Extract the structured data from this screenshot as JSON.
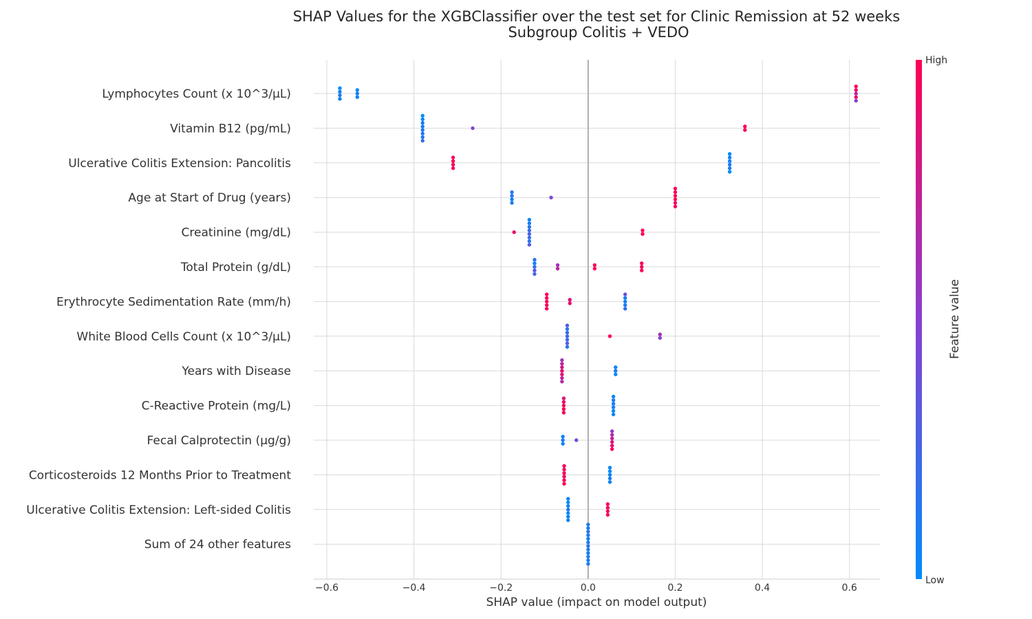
{
  "chart_data": {
    "type": "scatter",
    "title": "SHAP Values for the XGBClassifier over the test set for Clinic Remission at 52 weeks",
    "subtitle": "Subgroup Colitis + VEDO",
    "xlabel": "SHAP value (impact on model output)",
    "xlim": [
      -0.63,
      0.67
    ],
    "xticks": [
      -0.6,
      -0.4,
      -0.2,
      0.0,
      0.2,
      0.4,
      0.6
    ],
    "xtick_labels": [
      "−0.6",
      "−0.4",
      "−0.2",
      "0.0",
      "0.2",
      "0.4",
      "0.6"
    ],
    "grid": true,
    "colorbar": {
      "label": "Feature value",
      "high_label": "High",
      "low_label": "Low",
      "low_color": "#008bfb",
      "mid_color": "#8a3fd0",
      "high_color": "#ff0052"
    },
    "features": [
      {
        "name": "Lymphocytes Count (x 10^3/µL)",
        "points": [
          [
            -0.57,
            0.0
          ],
          [
            -0.57,
            0.05
          ],
          [
            -0.57,
            0.1
          ],
          [
            -0.57,
            0.05
          ],
          [
            -0.53,
            0.0
          ],
          [
            -0.53,
            0.05
          ],
          [
            -0.53,
            0.05
          ],
          [
            0.615,
            1.0
          ],
          [
            0.615,
            0.95
          ],
          [
            0.615,
            0.7
          ],
          [
            0.615,
            0.9
          ],
          [
            0.615,
            0.5
          ]
        ]
      },
      {
        "name": "Vitamin B12 (pg/mL)",
        "points": [
          [
            -0.38,
            0.0
          ],
          [
            -0.38,
            0.05
          ],
          [
            -0.38,
            0.08
          ],
          [
            -0.38,
            0.1
          ],
          [
            -0.38,
            0.1
          ],
          [
            -0.38,
            0.12
          ],
          [
            -0.38,
            0.15
          ],
          [
            -0.38,
            0.2
          ],
          [
            -0.265,
            0.45
          ],
          [
            0.36,
            1.0
          ],
          [
            0.36,
            0.95
          ]
        ]
      },
      {
        "name": "Ulcerative Colitis Extension: Pancolitis",
        "points": [
          [
            -0.31,
            1.0
          ],
          [
            -0.31,
            1.0
          ],
          [
            -0.31,
            0.95
          ],
          [
            -0.31,
            0.95
          ],
          [
            0.325,
            0.0
          ],
          [
            0.325,
            0.05
          ],
          [
            0.325,
            0.05
          ],
          [
            0.325,
            0.1
          ],
          [
            0.325,
            0.1
          ],
          [
            0.325,
            0.0
          ]
        ]
      },
      {
        "name": "Age at Start of Drug (years)",
        "points": [
          [
            -0.175,
            0.1
          ],
          [
            -0.175,
            0.15
          ],
          [
            -0.175,
            0.05
          ],
          [
            -0.175,
            0.1
          ],
          [
            -0.085,
            0.45
          ],
          [
            0.2,
            1.0
          ],
          [
            0.2,
            0.95
          ],
          [
            0.2,
            0.95
          ],
          [
            0.2,
            1.0
          ],
          [
            0.2,
            0.9
          ],
          [
            0.2,
            0.95
          ]
        ]
      },
      {
        "name": "Creatinine (mg/dL)",
        "points": [
          [
            -0.17,
            0.9
          ],
          [
            -0.135,
            0.05
          ],
          [
            -0.135,
            0.1
          ],
          [
            -0.135,
            0.15
          ],
          [
            -0.135,
            0.2
          ],
          [
            -0.135,
            0.25
          ],
          [
            -0.135,
            0.2
          ],
          [
            -0.135,
            0.15
          ],
          [
            -0.135,
            0.3
          ],
          [
            0.125,
            1.0
          ],
          [
            0.125,
            0.95
          ]
        ]
      },
      {
        "name": "Total Protein (g/dL)",
        "points": [
          [
            -0.123,
            0.15
          ],
          [
            -0.123,
            0.05
          ],
          [
            -0.123,
            0.2
          ],
          [
            -0.123,
            0.3
          ],
          [
            -0.123,
            0.25
          ],
          [
            -0.07,
            0.6
          ],
          [
            -0.07,
            0.7
          ],
          [
            0.015,
            0.95
          ],
          [
            0.015,
            1.0
          ],
          [
            0.123,
            1.0
          ],
          [
            0.123,
            0.95
          ],
          [
            0.123,
            1.0
          ]
        ]
      },
      {
        "name": "Erythrocyte Sedimentation Rate (mm/h)",
        "points": [
          [
            -0.095,
            1.0
          ],
          [
            -0.095,
            0.95
          ],
          [
            -0.095,
            1.0
          ],
          [
            -0.095,
            0.95
          ],
          [
            -0.095,
            1.0
          ],
          [
            -0.042,
            0.85
          ],
          [
            -0.042,
            0.9
          ],
          [
            0.085,
            0.35
          ],
          [
            0.085,
            0.1
          ],
          [
            0.085,
            0.05
          ],
          [
            0.085,
            0.1
          ],
          [
            0.085,
            0.15
          ]
        ]
      },
      {
        "name": "White Blood Cells Count (x 10^3/µL)",
        "points": [
          [
            -0.048,
            0.3
          ],
          [
            -0.048,
            0.15
          ],
          [
            -0.048,
            0.2
          ],
          [
            -0.048,
            0.25
          ],
          [
            -0.048,
            0.2
          ],
          [
            -0.048,
            0.3
          ],
          [
            -0.048,
            0.15
          ],
          [
            0.05,
            1.0
          ],
          [
            0.165,
            0.6
          ],
          [
            0.165,
            0.5
          ]
        ]
      },
      {
        "name": "Years with Disease",
        "points": [
          [
            -0.06,
            0.6
          ],
          [
            -0.06,
            0.7
          ],
          [
            -0.06,
            0.8
          ],
          [
            -0.06,
            0.9
          ],
          [
            -0.06,
            0.85
          ],
          [
            -0.06,
            0.75
          ],
          [
            -0.06,
            0.65
          ],
          [
            0.063,
            0.05
          ],
          [
            0.063,
            0.1
          ],
          [
            0.063,
            0.0
          ]
        ]
      },
      {
        "name": "C-Reactive Protein (mg/L)",
        "points": [
          [
            -0.056,
            0.85
          ],
          [
            -0.056,
            0.9
          ],
          [
            -0.056,
            0.95
          ],
          [
            -0.056,
            1.0
          ],
          [
            -0.056,
            0.95
          ],
          [
            0.058,
            0.05
          ],
          [
            0.058,
            0.1
          ],
          [
            0.058,
            0.05
          ],
          [
            0.058,
            0.1
          ],
          [
            0.058,
            0.0
          ],
          [
            0.058,
            0.05
          ]
        ]
      },
      {
        "name": "Fecal Calprotectin (µg/g)",
        "points": [
          [
            -0.058,
            0.05
          ],
          [
            -0.058,
            0.1
          ],
          [
            -0.058,
            0.05
          ],
          [
            -0.027,
            0.4
          ],
          [
            0.055,
            0.55
          ],
          [
            0.055,
            0.65
          ],
          [
            0.055,
            0.75
          ],
          [
            0.055,
            0.8
          ],
          [
            0.055,
            0.9
          ],
          [
            0.055,
            1.0
          ]
        ]
      },
      {
        "name": "Corticosteroids 12 Months Prior to Treatment",
        "points": [
          [
            -0.055,
            1.0
          ],
          [
            -0.055,
            0.95
          ],
          [
            -0.055,
            1.0
          ],
          [
            -0.055,
            0.95
          ],
          [
            -0.055,
            1.0
          ],
          [
            -0.055,
            1.0
          ],
          [
            0.05,
            0.05
          ],
          [
            0.05,
            0.0
          ],
          [
            0.05,
            0.05
          ],
          [
            0.05,
            0.1
          ],
          [
            0.05,
            0.05
          ]
        ]
      },
      {
        "name": "Ulcerative Colitis Extension: Left-sided Colitis",
        "points": [
          [
            -0.046,
            0.05
          ],
          [
            -0.046,
            0.0
          ],
          [
            -0.046,
            0.05
          ],
          [
            -0.046,
            0.1
          ],
          [
            -0.046,
            0.0
          ],
          [
            -0.046,
            0.05
          ],
          [
            -0.046,
            0.05
          ],
          [
            0.045,
            1.0
          ],
          [
            0.045,
            0.95
          ],
          [
            0.045,
            1.0
          ],
          [
            0.045,
            0.95
          ]
        ]
      },
      {
        "name": "Sum of 24 other features",
        "points": [
          [
            0.0,
            0.1
          ],
          [
            0.0,
            0.1
          ],
          [
            0.0,
            0.15
          ],
          [
            0.0,
            0.1
          ],
          [
            0.0,
            0.05
          ],
          [
            0.0,
            0.1
          ],
          [
            0.0,
            0.15
          ],
          [
            0.0,
            0.1
          ],
          [
            0.0,
            0.05
          ],
          [
            0.0,
            0.1
          ],
          [
            0.0,
            0.1
          ],
          [
            0.0,
            0.1
          ]
        ]
      }
    ]
  }
}
